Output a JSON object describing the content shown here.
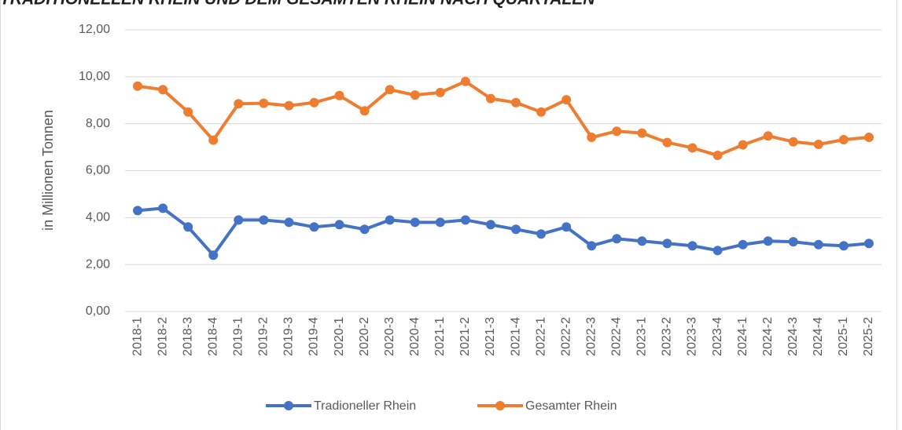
{
  "chart_data": {
    "type": "line",
    "title": "TRADITIONELLEN RHEIN UND DEM GESAMTEN RHEIN NACH QUARTALEN",
    "y_label": "in Millionen Tonnen",
    "categories": [
      "2018-1",
      "2018-2",
      "2018-3",
      "2018-4",
      "2019-1",
      "2019-2",
      "2019-3",
      "2019-4",
      "2020-1",
      "2020-2",
      "2020-3",
      "2020-4",
      "2021-1",
      "2021-2",
      "2021-3",
      "2021-4",
      "2022-1",
      "2022-2",
      "2022-3",
      "2022-4",
      "2023-1",
      "2023-2",
      "2023-3",
      "2023-4",
      "2024-1",
      "2024-2",
      "2024-3",
      "2024-4",
      "2025-1",
      "2025-2"
    ],
    "series": [
      {
        "name": "Tradioneller Rhein",
        "color": "#4472c4",
        "values": [
          4.3,
          4.4,
          3.6,
          2.4,
          3.9,
          3.9,
          3.8,
          3.6,
          3.7,
          3.5,
          3.9,
          3.8,
          3.8,
          3.9,
          3.7,
          3.5,
          3.3,
          3.6,
          2.8,
          3.1,
          3.0,
          2.9,
          2.8,
          2.6,
          2.85,
          3.0,
          2.97,
          2.85,
          2.8,
          2.9
        ]
      },
      {
        "name": "Gesamter Rhein",
        "color": "#ed7d31",
        "values": [
          9.6,
          9.45,
          8.5,
          7.3,
          8.85,
          8.87,
          8.77,
          8.9,
          9.2,
          8.55,
          9.45,
          9.22,
          9.33,
          9.8,
          9.07,
          8.9,
          8.5,
          9.02,
          7.42,
          7.68,
          7.6,
          7.2,
          6.97,
          6.65,
          7.1,
          7.48,
          7.23,
          7.12,
          7.32,
          7.42
        ]
      }
    ],
    "ylim": [
      0,
      12
    ],
    "yticks": [
      {
        "value": 0,
        "label": "0,00"
      },
      {
        "value": 2,
        "label": "2,00"
      },
      {
        "value": 4,
        "label": "4,00"
      },
      {
        "value": 6,
        "label": "6,00"
      },
      {
        "value": 8,
        "label": "8,00"
      },
      {
        "value": 10,
        "label": "10,00"
      },
      {
        "value": 12,
        "label": "12,00"
      }
    ],
    "grid": true,
    "legend": "bottom"
  }
}
